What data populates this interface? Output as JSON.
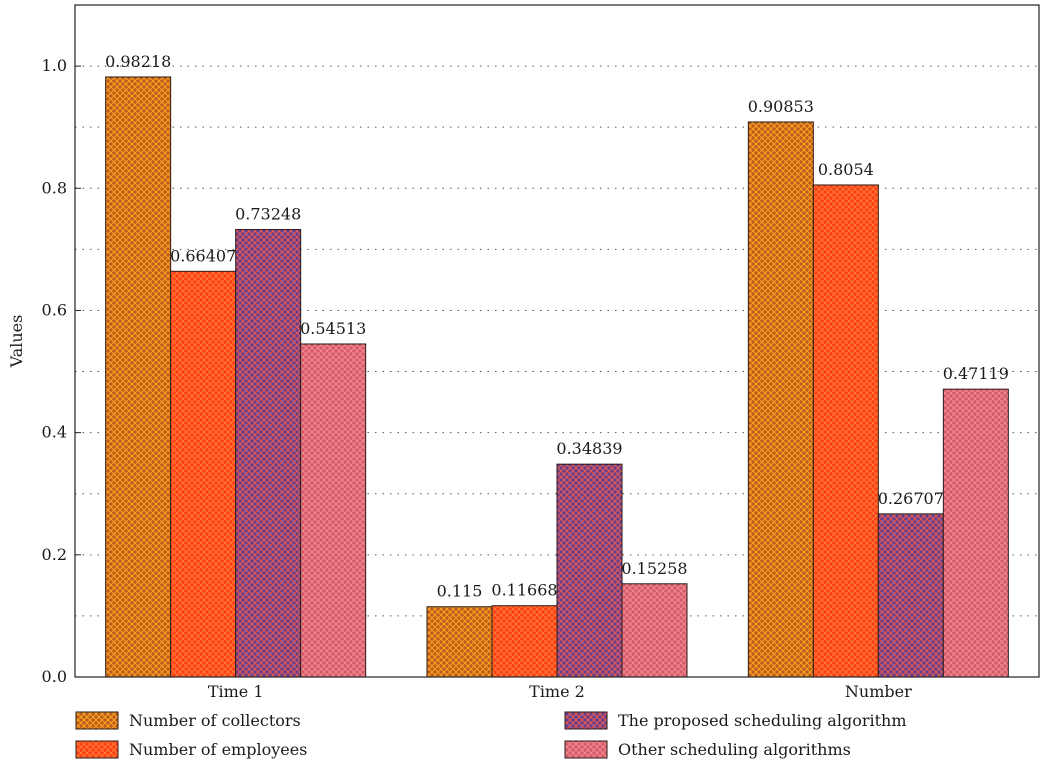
{
  "chart_data": {
    "type": "bar",
    "title": "",
    "xlabel": "",
    "ylabel": "Values",
    "ylim": [
      0,
      1.1
    ],
    "yticks": [
      "0.0",
      "0.2",
      "0.4",
      "0.6",
      "0.8",
      "1.0"
    ],
    "grid": "horizontal dotted",
    "legend_position": "bottom",
    "categories": [
      "Time 1",
      "Time 2",
      "Number"
    ],
    "series": [
      {
        "name": "Number of collectors",
        "values": [
          0.98218,
          0.115,
          0.90853
        ],
        "labels": [
          "0.98218",
          "0.115",
          "0.90853"
        ],
        "color": "#c05a1a",
        "pattern_color": "#f5a623"
      },
      {
        "name": "Number of employees",
        "values": [
          0.66407,
          0.11668,
          0.8054
        ],
        "labels": [
          "0.66407",
          "0.11668",
          "0.8054"
        ],
        "color": "#ff3d1a",
        "pattern_color": "#ff7a2e"
      },
      {
        "name": "The proposed scheduling algorithm",
        "values": [
          0.73248,
          0.34839,
          0.26707
        ],
        "labels": [
          "0.73248",
          "0.34839",
          "0.26707"
        ],
        "color": "#6a3f8a",
        "pattern_color": "#e05a5a"
      },
      {
        "name": "Other scheduling algorithms",
        "values": [
          0.54513,
          0.15258,
          0.47119
        ],
        "labels": [
          "0.54513",
          "0.15258",
          "0.47119"
        ],
        "color": "#d65a6e",
        "pattern_color": "#f08a8a"
      }
    ]
  }
}
